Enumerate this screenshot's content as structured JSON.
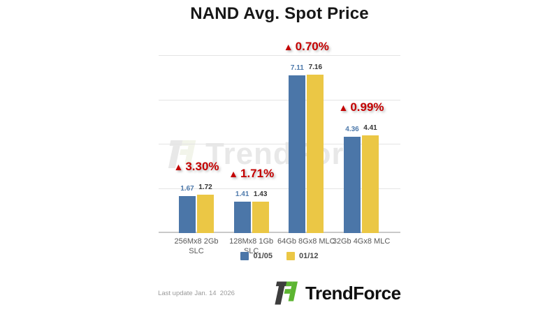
{
  "title": "NAND Avg. Spot Price",
  "chart_data": {
    "type": "bar",
    "categories": [
      [
        "256Mx8 2Gb",
        "SLC"
      ],
      [
        "128Mx8 1Gb",
        "SLC"
      ],
      [
        "64Gb 8Gx8 MLC"
      ],
      [
        "32Gb 4Gx8 MLC"
      ]
    ],
    "series": [
      {
        "name": "01/05",
        "color": "#4b76a8",
        "values": [
          1.67,
          1.41,
          7.11,
          4.36
        ]
      },
      {
        "name": "01/12",
        "color": "#ebc745",
        "values": [
          1.72,
          1.43,
          7.16,
          4.41
        ]
      }
    ],
    "changes": [
      {
        "direction": "up",
        "delta": "3.30%"
      },
      {
        "direction": "up",
        "delta": "1.71%"
      },
      {
        "direction": "up",
        "delta": "0.70%"
      },
      {
        "direction": "up",
        "delta": "0.99%"
      }
    ],
    "title": "NAND Avg. Spot Price",
    "xlabel": "",
    "ylabel": "",
    "ylim": [
      0,
      8
    ],
    "grid_step": 2,
    "grid": true,
    "legend_position": "bottom",
    "value_label_colors": [
      "#4d79ab",
      "#333333"
    ],
    "change_color": "#c40000"
  },
  "watermark_text": "TrendForce",
  "footer": {
    "last_update": "Last update Jan. 14  2026",
    "brand_name": "TrendForce"
  },
  "logo_colors": {
    "dark": "#3d3d3d",
    "green": "#5cb531"
  }
}
